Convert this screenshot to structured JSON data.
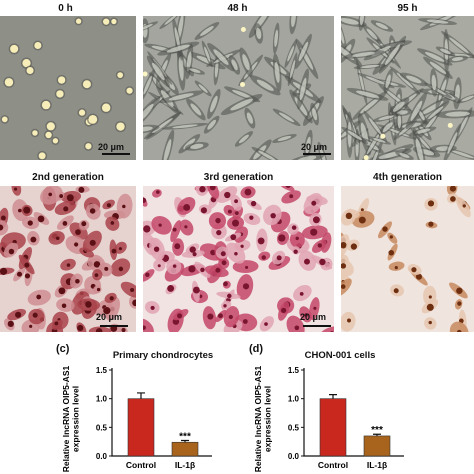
{
  "panel_a": {
    "titles": [
      "0 h",
      "48 h",
      "95 h"
    ],
    "scale_label": "20 μm"
  },
  "panel_b": {
    "titles": [
      "2nd generation",
      "3rd generation",
      "4th generation"
    ],
    "scale_label": "20 μm"
  },
  "chart_data": [
    {
      "type": "bar",
      "panel_label": "(c)",
      "title": "Primary chondrocytes",
      "ylabel": "Relative lncRNA OIP5-AS1 expression level",
      "categories": [
        "Control",
        "IL-1β"
      ],
      "values": [
        1.0,
        0.24
      ],
      "errors": [
        0.1,
        0.03
      ],
      "significance": [
        "",
        "***"
      ],
      "colors": [
        "#c8281e",
        "#a8641c"
      ],
      "yticks": [
        "0.0",
        "0.5",
        "1.0",
        "1.5"
      ],
      "ylim": [
        0,
        1.5
      ]
    },
    {
      "type": "bar",
      "panel_label": "(d)",
      "title": "CHON-001 cells",
      "ylabel": "Relative lncRNA OIP5-AS1 expression level",
      "categories": [
        "Control",
        "IL-1β"
      ],
      "values": [
        1.0,
        0.35
      ],
      "errors": [
        0.07,
        0.03
      ],
      "significance": [
        "",
        "***"
      ],
      "colors": [
        "#c8281e",
        "#a8641c"
      ],
      "yticks": [
        "0.0",
        "0.5",
        "1.0",
        "1.5"
      ],
      "ylim": [
        0,
        1.5
      ]
    }
  ]
}
